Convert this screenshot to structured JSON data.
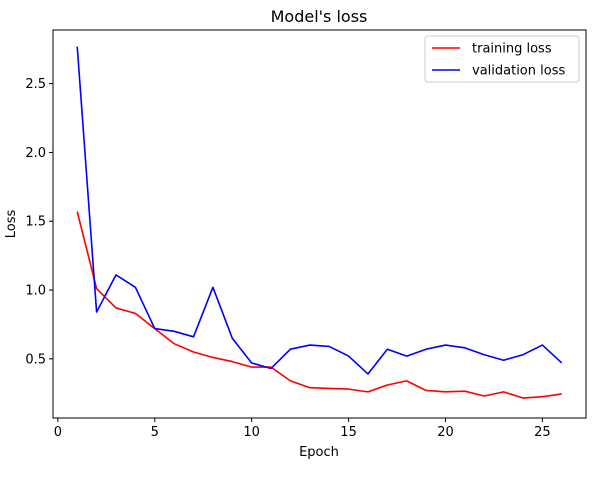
{
  "chart_data": {
    "type": "line",
    "title": "Model's loss",
    "xlabel": "Epoch",
    "ylabel": "Loss",
    "xlim": [
      -0.25,
      27.25
    ],
    "ylim": [
      0.07,
      2.89
    ],
    "xticks": [
      0,
      5,
      10,
      15,
      20,
      25
    ],
    "yticks": [
      0.5,
      1.0,
      1.5,
      2.0,
      2.5
    ],
    "ytick_labels": [
      "0.5",
      "1.0",
      "1.5",
      "2.0",
      "2.5"
    ],
    "grid": false,
    "legend_position": "top-right",
    "x": [
      1,
      2,
      3,
      4,
      5,
      6,
      7,
      8,
      9,
      10,
      11,
      12,
      13,
      14,
      15,
      16,
      17,
      18,
      19,
      20,
      21,
      22,
      23,
      24,
      25,
      26
    ],
    "series": [
      {
        "name": "training loss",
        "color": "#ff0000",
        "values": [
          1.57,
          1.01,
          0.87,
          0.83,
          0.72,
          0.61,
          0.55,
          0.51,
          0.48,
          0.44,
          0.44,
          0.34,
          0.29,
          0.285,
          0.28,
          0.26,
          0.31,
          0.34,
          0.27,
          0.26,
          0.265,
          0.23,
          0.26,
          0.215,
          0.225,
          0.245
        ]
      },
      {
        "name": "validation loss",
        "color": "#0000ff",
        "values": [
          2.77,
          0.84,
          1.11,
          1.02,
          0.72,
          0.7,
          0.66,
          1.02,
          0.65,
          0.47,
          0.43,
          0.57,
          0.6,
          0.59,
          0.52,
          0.39,
          0.57,
          0.52,
          0.57,
          0.6,
          0.58,
          0.53,
          0.49,
          0.53,
          0.6,
          0.47
        ]
      }
    ]
  }
}
